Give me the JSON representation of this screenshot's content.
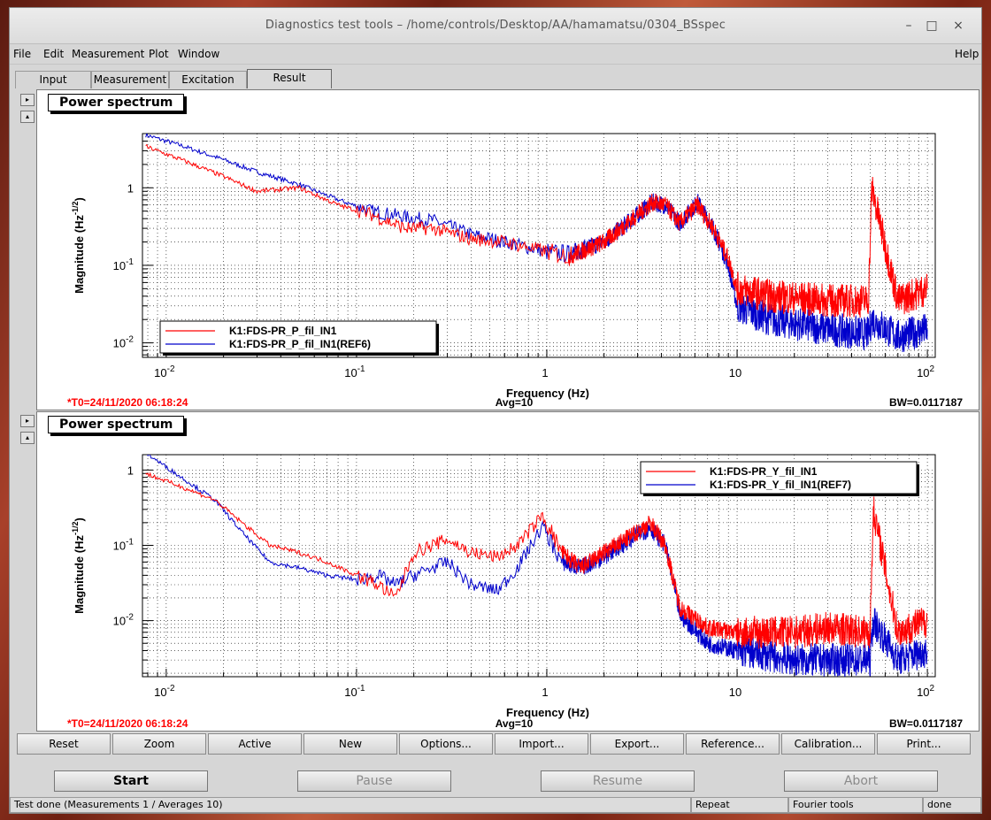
{
  "window": {
    "title": "Diagnostics test tools – /home/controls/Desktop/AA/hamamatsu/0304_BSspec"
  },
  "title_buttons": {
    "minimize": "–",
    "maximize": "□",
    "close": "×"
  },
  "menu": {
    "file": "File",
    "edit": "Edit",
    "measurement": "Measurement",
    "plot": "Plot",
    "window": "Window",
    "help": "Help"
  },
  "tabs": {
    "input": "Input",
    "measurement": "Measurement",
    "excitation": "Excitation",
    "result": "Result"
  },
  "panel_arrows": {
    "right": "▸",
    "up": "▴"
  },
  "plots": [
    {
      "title": "Power spectrum",
      "ylabel": "Magnitude (Hz",
      "ylabel_sup": "-1/2",
      "ylabel_end": ")",
      "xlabel": "Frequency (Hz)",
      "xticks": [
        {
          "val": 0.01,
          "base": "10",
          "sup": "-2"
        },
        {
          "val": 0.1,
          "base": "10",
          "sup": "-1"
        },
        {
          "val": 1,
          "base": "1",
          "sup": ""
        },
        {
          "val": 10,
          "base": "10",
          "sup": ""
        },
        {
          "val": 100,
          "base": "10",
          "sup": "2"
        }
      ],
      "yticks": [
        {
          "val": 1,
          "base": "1",
          "sup": ""
        },
        {
          "val": 0.1,
          "base": "10",
          "sup": "-1"
        },
        {
          "val": 0.01,
          "base": "10",
          "sup": "-2"
        }
      ],
      "legend": [
        "K1:FDS-PR_P_fil_IN1",
        "K1:FDS-PR_P_fil_IN1(REF6)"
      ],
      "footer": {
        "t0": "*T0=24/11/2020 06:18:24",
        "avg": "Avg=10",
        "bw": "BW=0.0117187"
      }
    },
    {
      "title": "Power spectrum",
      "ylabel": "Magnitude (Hz",
      "ylabel_sup": "-1/2",
      "ylabel_end": ")",
      "xlabel": "Frequency (Hz)",
      "xticks": [
        {
          "val": 0.01,
          "base": "10",
          "sup": "-2"
        },
        {
          "val": 0.1,
          "base": "10",
          "sup": "-1"
        },
        {
          "val": 1,
          "base": "1",
          "sup": ""
        },
        {
          "val": 10,
          "base": "10",
          "sup": ""
        },
        {
          "val": 100,
          "base": "10",
          "sup": "2"
        }
      ],
      "yticks": [
        {
          "val": 1,
          "base": "1",
          "sup": ""
        },
        {
          "val": 0.1,
          "base": "10",
          "sup": "-1"
        },
        {
          "val": 0.01,
          "base": "10",
          "sup": "-2"
        }
      ],
      "legend": [
        "K1:FDS-PR_Y_fil_IN1",
        "K1:FDS-PR_Y_fil_IN1(REF7)"
      ],
      "footer": {
        "t0": "*T0=24/11/2020 06:18:24",
        "avg": "Avg=10",
        "bw": "BW=0.0117187"
      }
    }
  ],
  "chart_data": [
    {
      "type": "line",
      "title": "Power spectrum",
      "xlabel": "Frequency (Hz)",
      "ylabel": "Magnitude (Hz^-1/2)",
      "xscale": "log",
      "yscale": "log",
      "xlim": [
        0.0075,
        110
      ],
      "ylim": [
        0.0065,
        5
      ],
      "grid": true,
      "legend_position": "bottom-left",
      "colors": [
        "#ff0000",
        "#0000cc"
      ],
      "series": [
        {
          "name": "K1:FDS-PR_P_fil_IN1",
          "color": "#ff0000",
          "x": [
            0.0078,
            0.012,
            0.02,
            0.03,
            0.05,
            0.08,
            0.12,
            0.18,
            0.25,
            0.4,
            0.6,
            1.0,
            1.3,
            2.0,
            3.0,
            3.6,
            4.2,
            5.0,
            6.2,
            7.5,
            9.0,
            10,
            15,
            30,
            49,
            51,
            70,
            100
          ],
          "y": [
            3.4,
            2.3,
            1.4,
            0.9,
            1.0,
            0.6,
            0.45,
            0.3,
            0.3,
            0.22,
            0.2,
            0.15,
            0.13,
            0.2,
            0.45,
            0.65,
            0.6,
            0.35,
            0.6,
            0.3,
            0.12,
            0.05,
            0.04,
            0.035,
            0.035,
            1.0,
            0.035,
            0.05
          ]
        },
        {
          "name": "K1:FDS-PR_P_fil_IN1(REF6)",
          "color": "#0000cc",
          "x": [
            0.0078,
            0.012,
            0.02,
            0.03,
            0.05,
            0.08,
            0.12,
            0.18,
            0.25,
            0.4,
            0.6,
            1.0,
            1.3,
            2.0,
            3.0,
            3.6,
            4.2,
            5.0,
            6.2,
            7.5,
            9.0,
            10,
            15,
            30,
            49,
            51,
            70,
            100
          ],
          "y": [
            4.8,
            3.5,
            2.3,
            1.6,
            1.1,
            0.7,
            0.5,
            0.42,
            0.38,
            0.25,
            0.2,
            0.15,
            0.14,
            0.2,
            0.45,
            0.65,
            0.6,
            0.35,
            0.65,
            0.3,
            0.1,
            0.03,
            0.02,
            0.015,
            0.013,
            0.02,
            0.012,
            0.015
          ]
        }
      ]
    },
    {
      "type": "line",
      "title": "Power spectrum",
      "xlabel": "Frequency (Hz)",
      "ylabel": "Magnitude (Hz^-1/2)",
      "xscale": "log",
      "yscale": "log",
      "xlim": [
        0.0075,
        110
      ],
      "ylim": [
        0.0018,
        1.6
      ],
      "grid": true,
      "legend_position": "top-right",
      "colors": [
        "#ff0000",
        "#0000cc"
      ],
      "series": [
        {
          "name": "K1:FDS-PR_Y_fil_IN1",
          "color": "#ff0000",
          "x": [
            0.0078,
            0.012,
            0.018,
            0.025,
            0.035,
            0.05,
            0.07,
            0.1,
            0.13,
            0.16,
            0.2,
            0.3,
            0.4,
            0.55,
            0.7,
            0.95,
            1.2,
            1.5,
            2.0,
            3.0,
            3.5,
            4.2,
            5.0,
            7.0,
            10,
            20,
            30,
            50,
            52,
            70,
            100
          ],
          "y": [
            0.9,
            0.6,
            0.4,
            0.2,
            0.1,
            0.08,
            0.06,
            0.04,
            0.03,
            0.02,
            0.08,
            0.12,
            0.08,
            0.07,
            0.1,
            0.25,
            0.08,
            0.05,
            0.08,
            0.15,
            0.2,
            0.1,
            0.015,
            0.008,
            0.007,
            0.007,
            0.008,
            0.007,
            0.3,
            0.007,
            0.01
          ]
        },
        {
          "name": "K1:FDS-PR_Y_fil_IN1(REF7)",
          "color": "#0000cc",
          "x": [
            0.0078,
            0.012,
            0.018,
            0.025,
            0.035,
            0.05,
            0.07,
            0.1,
            0.13,
            0.16,
            0.2,
            0.3,
            0.4,
            0.55,
            0.7,
            0.95,
            1.2,
            1.5,
            2.0,
            3.0,
            3.5,
            4.2,
            5.0,
            7.0,
            10,
            20,
            30,
            50,
            52,
            70,
            100
          ],
          "y": [
            1.7,
            0.8,
            0.4,
            0.15,
            0.06,
            0.05,
            0.04,
            0.035,
            0.04,
            0.03,
            0.04,
            0.06,
            0.03,
            0.025,
            0.05,
            0.18,
            0.06,
            0.05,
            0.07,
            0.14,
            0.17,
            0.1,
            0.012,
            0.005,
            0.004,
            0.003,
            0.003,
            0.003,
            0.01,
            0.003,
            0.004
          ]
        }
      ]
    }
  ],
  "buttons": [
    "Reset",
    "Zoom",
    "Active",
    "New",
    "Options...",
    "Import...",
    "Export...",
    "Reference...",
    "Calibration...",
    "Print..."
  ],
  "controls": {
    "start": "Start",
    "pause": "Pause",
    "resume": "Resume",
    "abort": "Abort"
  },
  "status": {
    "message": "Test done (Measurements 1 / Averages 10)",
    "repeat": "Repeat",
    "tools": "Fourier tools",
    "state": "done"
  }
}
